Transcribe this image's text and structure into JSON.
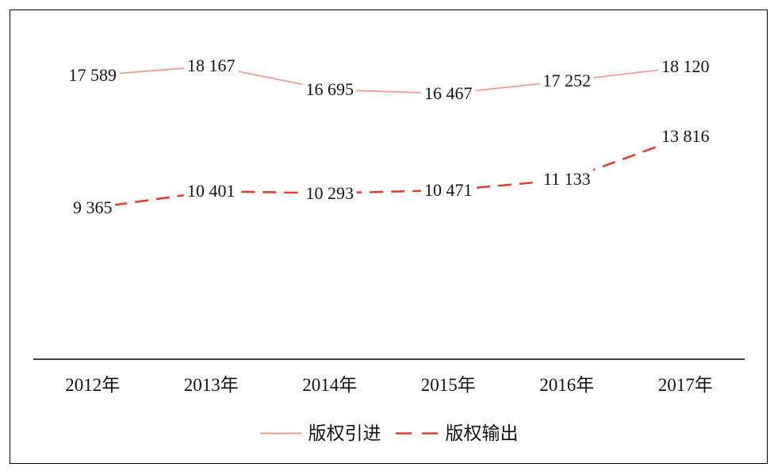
{
  "chart_data": {
    "type": "line",
    "title": "",
    "xlabel": "",
    "ylabel": "",
    "categories": [
      "2012年",
      "2013年",
      "2014年",
      "2015年",
      "2016年",
      "2017年"
    ],
    "series": [
      {
        "name": "版权引进",
        "style": "solid",
        "color": "#f19a92",
        "values": [
          17589,
          18167,
          16695,
          16467,
          17252,
          18120
        ],
        "labels": [
          "17 589",
          "18 167",
          "16 695",
          "16 467",
          "17 252",
          "18 120"
        ]
      },
      {
        "name": "版权输出",
        "style": "dashed",
        "color": "#e23b28",
        "values": [
          9365,
          10401,
          10293,
          10471,
          11133,
          13816
        ],
        "labels": [
          "9 365",
          "10 401",
          "10 293",
          "10 471",
          "11 133",
          "13 816"
        ]
      }
    ],
    "ylim": [
      0,
      20000
    ],
    "grid": false,
    "y_axis_visible": false,
    "x_axis_color": "#000000",
    "data_label_color": "#131313",
    "legend_position": "bottom"
  }
}
